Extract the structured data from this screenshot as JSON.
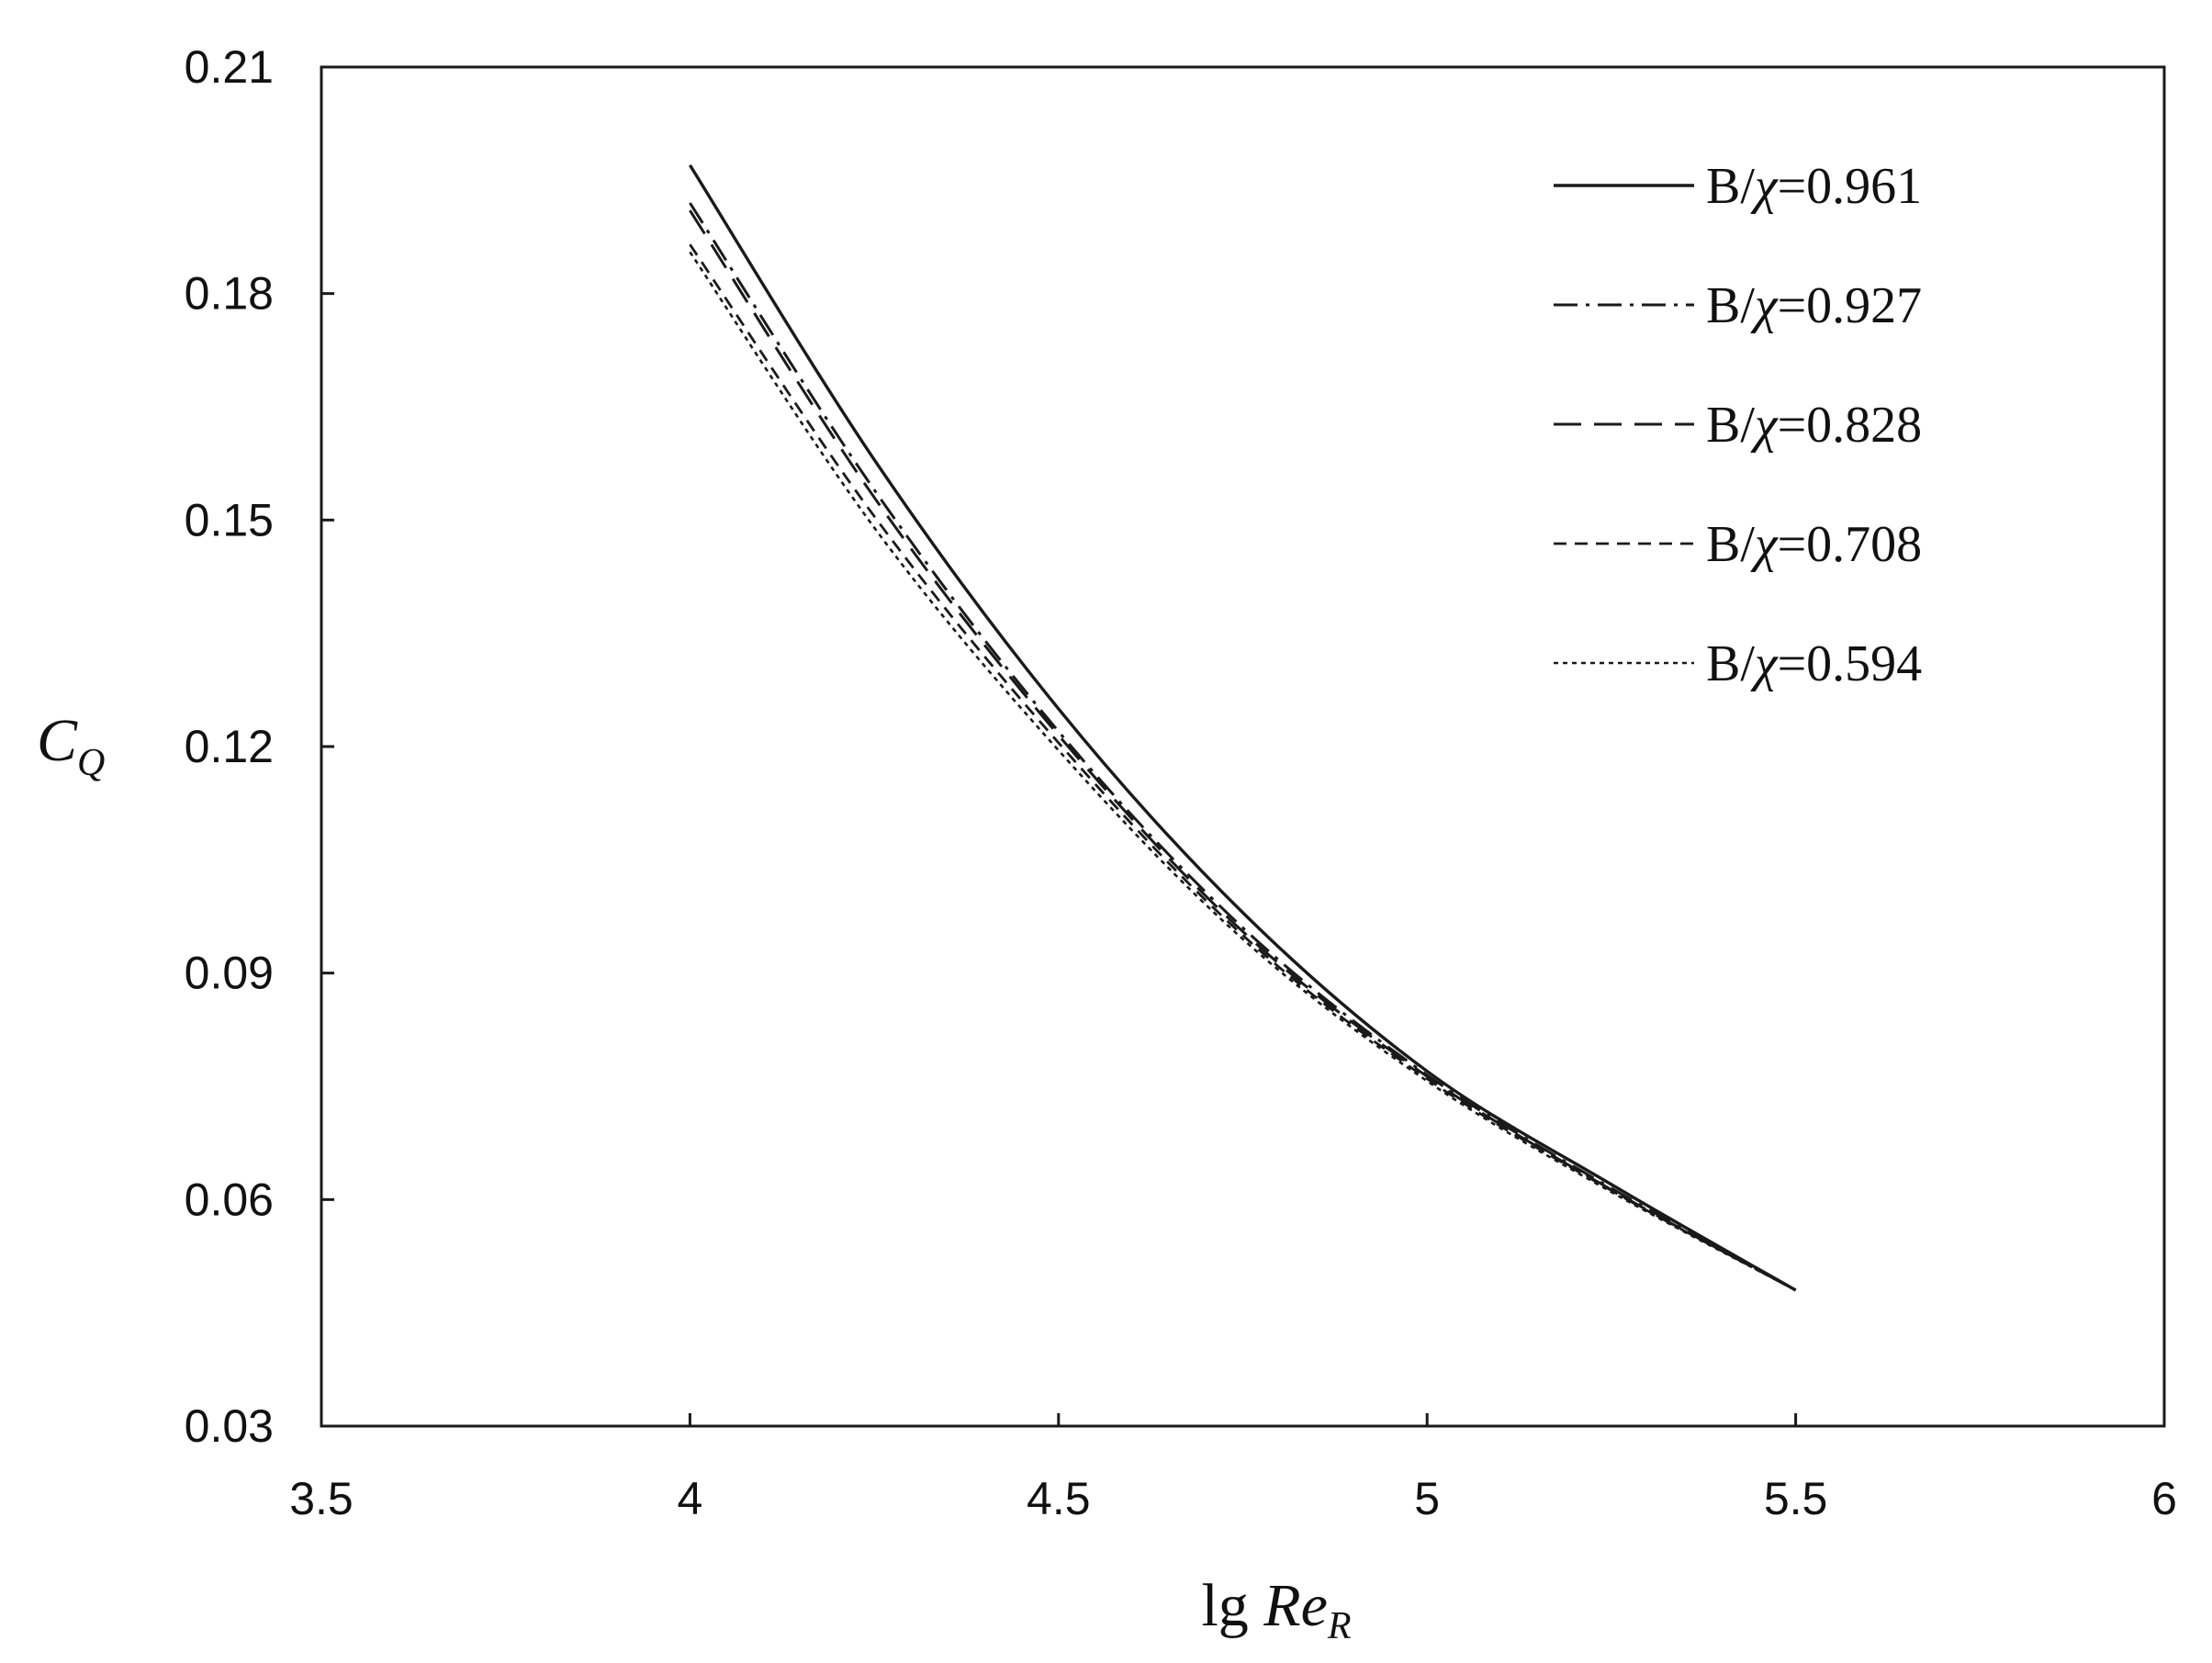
{
  "chart_data": {
    "type": "line",
    "xlabel": "lg Re_R",
    "xlabel_main": "lg ",
    "xlabel_var": "Re",
    "xlabel_sub": "R",
    "ylabel": "C_Q",
    "ylabel_var": "C",
    "ylabel_sub": "Q",
    "xlim": [
      3.5,
      6
    ],
    "ylim": [
      0.03,
      0.21
    ],
    "xticks": [
      3.5,
      4,
      4.5,
      5,
      5.5,
      6
    ],
    "xtick_labels": [
      "3.5",
      "4",
      "4.5",
      "5",
      "5.5",
      "6"
    ],
    "yticks": [
      0.03,
      0.06,
      0.09,
      0.12,
      0.15,
      0.18,
      0.21
    ],
    "ytick_labels": [
      "0.03",
      "0.06",
      "0.09",
      "0.12",
      "0.15",
      "0.18",
      "0.21"
    ],
    "grid": false,
    "legend_position": "top-right",
    "x": [
      4.0,
      4.25,
      4.5,
      4.75,
      5.0,
      5.25,
      5.5
    ],
    "series": [
      {
        "name": "B/χ=0.961",
        "label_prefix": "B/",
        "label_symbol": "χ",
        "label_value": "=0.961",
        "dash": "solid",
        "values": [
          0.197,
          0.158,
          0.125,
          0.098,
          0.077,
          0.062,
          0.048
        ]
      },
      {
        "name": "B/χ=0.927",
        "label_prefix": "B/",
        "label_symbol": "χ",
        "label_value": "=0.927",
        "dash": "dashdot",
        "values": [
          0.192,
          0.154,
          0.122,
          0.096,
          0.0765,
          0.0615,
          0.048
        ]
      },
      {
        "name": "B/χ=0.828",
        "label_prefix": "B/",
        "label_symbol": "χ",
        "label_value": "=0.828",
        "dash": "longdash",
        "values": [
          0.191,
          0.153,
          0.1215,
          0.0955,
          0.0763,
          0.0613,
          0.048
        ]
      },
      {
        "name": "B/χ=0.708",
        "label_prefix": "B/",
        "label_symbol": "χ",
        "label_value": "=0.708",
        "dash": "shortdash",
        "values": [
          0.1865,
          0.1505,
          0.1205,
          0.095,
          0.076,
          0.0612,
          0.048
        ]
      },
      {
        "name": "B/χ=0.594",
        "label_prefix": "B/",
        "label_symbol": "χ",
        "label_value": "=0.594",
        "dash": "dotted",
        "values": [
          0.1855,
          0.149,
          0.1195,
          0.0945,
          0.0757,
          0.061,
          0.048
        ]
      }
    ]
  }
}
